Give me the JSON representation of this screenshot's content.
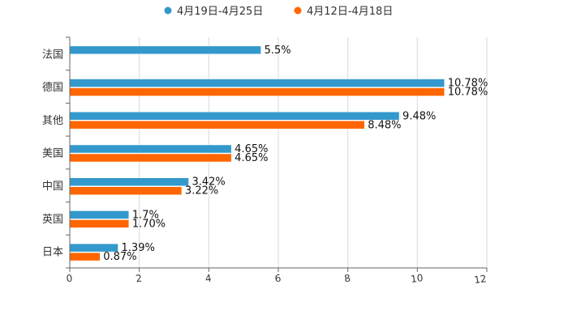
{
  "chart_data": {
    "type": "bar",
    "orientation": "horizontal",
    "title": "",
    "xlabel": "",
    "ylabel": "",
    "xlim": [
      0,
      12
    ],
    "x_ticks": [
      0,
      2,
      4,
      6,
      8,
      10,
      12
    ],
    "grid": "vertical",
    "legend_position": "top-center",
    "categories": [
      "法国",
      "德国",
      "其他",
      "美国",
      "中国",
      "英国",
      "日本"
    ],
    "series": [
      {
        "name": "4月19日-4月25日",
        "color": "#3399cc",
        "values": [
          5.5,
          10.78,
          9.48,
          4.65,
          3.42,
          1.7,
          1.39
        ],
        "labels": [
          "5.5%",
          "10.78%",
          "9.48%",
          "4.65%",
          "3.42%",
          "1.7%",
          "1.39%"
        ]
      },
      {
        "name": "4月12日-4月18日",
        "color": "#ff6600",
        "values": [
          null,
          10.78,
          8.48,
          4.65,
          3.22,
          1.7,
          0.87
        ],
        "labels": [
          null,
          "10.78%",
          "8.48%",
          "4.65%",
          "3.22%",
          "1.70%",
          "0.87%"
        ]
      }
    ]
  }
}
